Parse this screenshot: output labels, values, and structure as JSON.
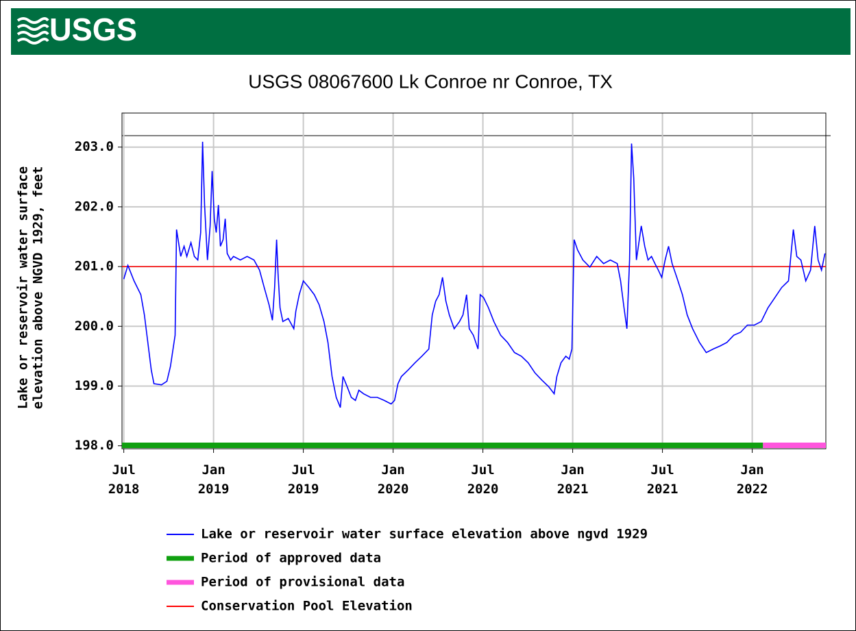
{
  "header": {
    "logo": "USGS"
  },
  "chart_data": {
    "type": "line",
    "title": "USGS 08067600 Lk Conroe nr Conroe, TX",
    "ylabel": [
      "Lake or reservoir water surface",
      "elevation above NGVD 1929, feet"
    ],
    "xlim": [
      2018.49,
      2022.41
    ],
    "ylim": [
      197.95,
      203.57
    ],
    "yticks": [
      {
        "value": 198,
        "label": "198.0"
      },
      {
        "value": 199,
        "label": "199.0"
      },
      {
        "value": 200,
        "label": "200.0"
      },
      {
        "value": 201,
        "label": "201.0"
      },
      {
        "value": 202,
        "label": "202.0"
      },
      {
        "value": 203,
        "label": "203.0"
      }
    ],
    "xticks": [
      {
        "value": 2018.5,
        "label": "Jul 2018"
      },
      {
        "value": 2019.0,
        "label": "Jan 2019"
      },
      {
        "value": 2019.5,
        "label": "Jul 2019"
      },
      {
        "value": 2020.0,
        "label": "Jan 2020"
      },
      {
        "value": 2020.5,
        "label": "Jul 2020"
      },
      {
        "value": 2021.0,
        "label": "Jan 2021"
      },
      {
        "value": 2021.5,
        "label": "Jul 2021"
      },
      {
        "value": 2022.0,
        "label": "Jan 2022"
      }
    ],
    "grid": true,
    "series": [
      {
        "name": "Lake or reservoir water surface elevation above ngvd 1929",
        "color": "#0000ff",
        "x": [
          2018.5,
          2018.523,
          2018.557,
          2018.595,
          2018.615,
          2018.634,
          2018.653,
          2018.668,
          2018.71,
          2018.74,
          2018.76,
          2018.786,
          2018.794,
          2018.817,
          2018.836,
          2018.851,
          2018.874,
          2018.893,
          2018.912,
          2018.928,
          2018.939,
          2018.95,
          2018.966,
          2018.981,
          2018.992,
          2019.004,
          2019.015,
          2019.027,
          2019.038,
          2019.053,
          2019.065,
          2019.076,
          2019.095,
          2019.111,
          2019.149,
          2019.187,
          2019.225,
          2019.256,
          2019.282,
          2019.309,
          2019.328,
          2019.34,
          2019.351,
          2019.359,
          2019.37,
          2019.386,
          2019.416,
          2019.447,
          2019.458,
          2019.477,
          2019.5,
          2019.531,
          2019.561,
          2019.588,
          2019.615,
          2019.637,
          2019.66,
          2019.683,
          2019.706,
          2019.721,
          2019.744,
          2019.767,
          2019.79,
          2019.809,
          2019.836,
          2019.874,
          2019.912,
          2019.95,
          2019.989,
          2020.008,
          2020.027,
          2020.046,
          2020.084,
          2020.122,
          2020.16,
          2020.199,
          2020.218,
          2020.237,
          2020.256,
          2020.275,
          2020.294,
          2020.313,
          2020.34,
          2020.37,
          2020.389,
          2020.409,
          2020.424,
          2020.447,
          2020.473,
          2020.485,
          2020.504,
          2020.531,
          2020.561,
          2020.599,
          2020.637,
          2020.676,
          2020.714,
          2020.752,
          2020.79,
          2020.828,
          2020.866,
          2020.897,
          2020.912,
          2020.935,
          2020.962,
          2020.981,
          2020.996,
          2021.008,
          2021.027,
          2021.057,
          2021.096,
          2021.134,
          2021.172,
          2021.21,
          2021.248,
          2021.267,
          2021.286,
          2021.302,
          2021.317,
          2021.328,
          2021.34,
          2021.355,
          2021.382,
          2021.401,
          2021.42,
          2021.439,
          2021.458,
          2021.477,
          2021.496,
          2021.515,
          2021.534,
          2021.554,
          2021.58,
          2021.611,
          2021.638,
          2021.668,
          2021.706,
          2021.744,
          2021.783,
          2021.821,
          2021.859,
          2021.897,
          2021.935,
          2021.973,
          2022.012,
          2022.05,
          2022.088,
          2022.126,
          2022.164,
          2022.202,
          2022.229,
          2022.248,
          2022.271,
          2022.298,
          2022.325,
          2022.348,
          2022.367,
          2022.386,
          2022.405
        ],
        "values": [
          200.79,
          201.02,
          200.76,
          200.53,
          200.19,
          199.73,
          199.27,
          199.04,
          199.02,
          199.08,
          199.33,
          199.85,
          201.62,
          201.17,
          201.34,
          201.17,
          201.4,
          201.17,
          201.11,
          201.57,
          203.09,
          202.03,
          201.11,
          201.68,
          202.6,
          201.8,
          201.57,
          202.03,
          201.34,
          201.45,
          201.8,
          201.22,
          201.11,
          201.17,
          201.11,
          201.17,
          201.11,
          200.94,
          200.65,
          200.36,
          200.1,
          200.65,
          201.45,
          200.88,
          200.31,
          200.08,
          200.13,
          199.96,
          200.25,
          200.53,
          200.76,
          200.65,
          200.53,
          200.36,
          200.08,
          199.73,
          199.16,
          198.81,
          198.64,
          199.16,
          198.99,
          198.81,
          198.76,
          198.93,
          198.87,
          198.81,
          198.81,
          198.76,
          198.7,
          198.76,
          199.04,
          199.16,
          199.27,
          199.39,
          199.5,
          199.62,
          200.19,
          200.42,
          200.53,
          200.82,
          200.42,
          200.19,
          199.96,
          200.08,
          200.19,
          200.53,
          199.96,
          199.85,
          199.62,
          200.53,
          200.48,
          200.31,
          200.08,
          199.85,
          199.73,
          199.56,
          199.5,
          199.39,
          199.22,
          199.1,
          198.99,
          198.87,
          199.16,
          199.39,
          199.5,
          199.45,
          199.62,
          201.45,
          201.28,
          201.11,
          200.99,
          201.17,
          201.05,
          201.11,
          201.05,
          200.76,
          200.31,
          199.96,
          201.11,
          203.06,
          202.48,
          201.11,
          201.68,
          201.34,
          201.11,
          201.17,
          201.05,
          200.94,
          200.82,
          201.11,
          201.34,
          201.05,
          200.82,
          200.53,
          200.19,
          199.96,
          199.73,
          199.56,
          199.62,
          199.67,
          199.73,
          199.85,
          199.9,
          200.02,
          200.02,
          200.08,
          200.31,
          200.48,
          200.65,
          200.76,
          201.62,
          201.17,
          201.11,
          200.76,
          200.94,
          201.68,
          201.11,
          200.94,
          201.22
        ]
      }
    ],
    "periods": [
      {
        "name": "Period of approved data",
        "color": "#10a010",
        "start": 2018.49,
        "end": 2022.06
      },
      {
        "name": "Period of provisional data",
        "color": "#ff55dd",
        "start": 2022.06,
        "end": 2022.41
      }
    ],
    "reference_lines": [
      {
        "name": "Conservation Pool Elevation",
        "color": "#ff0000",
        "value": 201
      }
    ]
  }
}
